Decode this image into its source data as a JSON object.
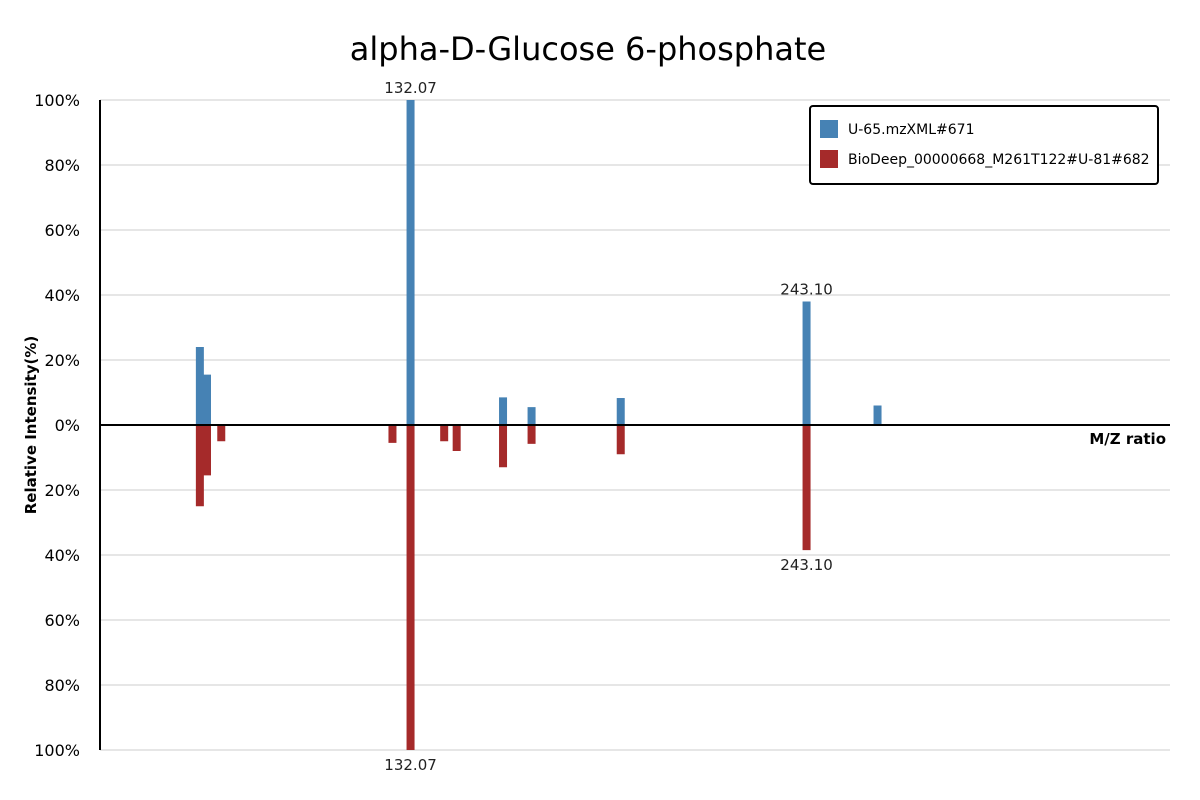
{
  "chart_data": {
    "type": "bar",
    "title": "alpha-D-Glucose 6-phosphate",
    "xlabel": "M/Z ratio",
    "ylabel": "Relative Intensity(%)",
    "ylim_top": [
      0,
      100
    ],
    "ylim_bottom": [
      0,
      100
    ],
    "yticks_top": [
      "0%",
      "20%",
      "40%",
      "60%",
      "80%",
      "100%"
    ],
    "yticks_bottom": [
      "20%",
      "40%",
      "60%",
      "80%",
      "100%"
    ],
    "grid": true,
    "legend_position": "top-right",
    "colors": {
      "top": "#4682b4",
      "bottom": "#a52a2a"
    },
    "series": [
      {
        "name": "U-65.mzXML#671",
        "direction": "up",
        "x": [
          73.0,
          75.0,
          132.07,
          158.0,
          166.0,
          191.0,
          243.1,
          263.0
        ],
        "values": [
          24,
          15.5,
          100,
          8.5,
          5.5,
          8.3,
          38,
          6
        ],
        "peak_labels": [
          {
            "x": 132.07,
            "text": "132.07"
          },
          {
            "x": 243.1,
            "text": "243.10"
          }
        ]
      },
      {
        "name": "BioDeep_00000668_M261T122#U-81#682",
        "direction": "down",
        "x": [
          73.0,
          75.0,
          79.0,
          127.0,
          132.07,
          145.0,
          141.5,
          158.0,
          166.0,
          191.0,
          243.1
        ],
        "values": [
          25,
          15.5,
          5,
          5.5,
          100,
          8,
          5,
          13,
          5.8,
          9,
          38.5
        ],
        "peak_labels": [
          {
            "x": 132.07,
            "text": "132.07"
          },
          {
            "x": 243.1,
            "text": "243.10"
          }
        ]
      }
    ]
  }
}
